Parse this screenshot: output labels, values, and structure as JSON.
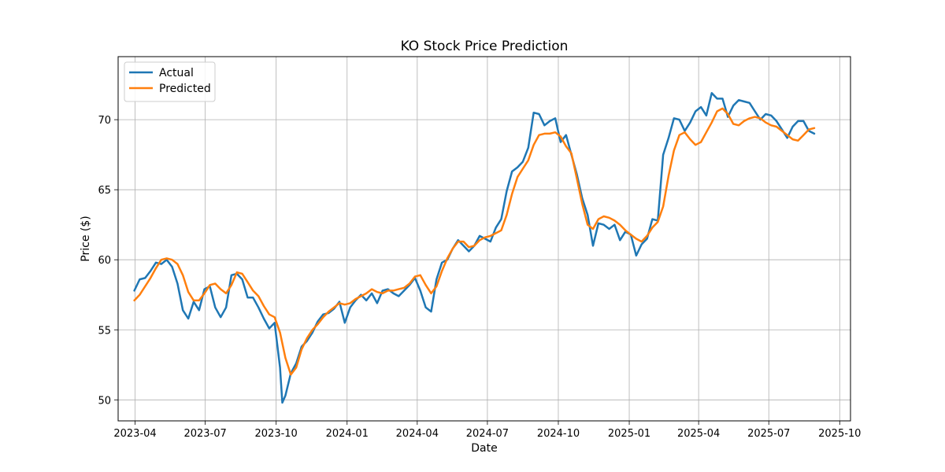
{
  "chart_data": {
    "type": "line",
    "title": "KO Stock Price Prediction",
    "xlabel": "Date",
    "ylabel": "Price ($)",
    "grid": true,
    "legend_position": "top-left",
    "xlim": [
      "2023-03-10",
      "2025-10-15"
    ],
    "ylim": [
      48.5,
      74.5
    ],
    "x_ticks": [
      "2023-04-01",
      "2023-07-01",
      "2023-10-01",
      "2024-01-01",
      "2024-04-01",
      "2024-07-01",
      "2024-10-01",
      "2025-01-01",
      "2025-04-01",
      "2025-07-01",
      "2025-10-01"
    ],
    "x_tick_labels": [
      "2023-04",
      "2023-07",
      "2023-10",
      "2024-01",
      "2024-04",
      "2024-07",
      "2024-10",
      "2025-01",
      "2025-04",
      "2025-07",
      "2025-10"
    ],
    "y_ticks": [
      50,
      55,
      60,
      65,
      70
    ],
    "series": [
      {
        "name": "Actual",
        "color": "#1f77b4",
        "points": [
          [
            "2023-03-31",
            57.8
          ],
          [
            "2023-04-07",
            58.6
          ],
          [
            "2023-04-14",
            58.7
          ],
          [
            "2023-04-21",
            59.2
          ],
          [
            "2023-04-28",
            59.8
          ],
          [
            "2023-05-05",
            59.7
          ],
          [
            "2023-05-12",
            60.0
          ],
          [
            "2023-05-19",
            59.5
          ],
          [
            "2023-05-26",
            58.3
          ],
          [
            "2023-06-02",
            56.4
          ],
          [
            "2023-06-09",
            55.8
          ],
          [
            "2023-06-16",
            57.0
          ],
          [
            "2023-06-23",
            56.4
          ],
          [
            "2023-06-30",
            57.9
          ],
          [
            "2023-07-07",
            58.1
          ],
          [
            "2023-07-14",
            56.6
          ],
          [
            "2023-07-21",
            55.9
          ],
          [
            "2023-07-28",
            56.6
          ],
          [
            "2023-08-04",
            58.9
          ],
          [
            "2023-08-11",
            59.0
          ],
          [
            "2023-08-18",
            58.6
          ],
          [
            "2023-08-25",
            57.3
          ],
          [
            "2023-09-01",
            57.3
          ],
          [
            "2023-09-08",
            56.6
          ],
          [
            "2023-09-15",
            55.8
          ],
          [
            "2023-09-22",
            55.1
          ],
          [
            "2023-09-29",
            55.5
          ],
          [
            "2023-10-06",
            52.3
          ],
          [
            "2023-10-09",
            49.8
          ],
          [
            "2023-10-13",
            50.3
          ],
          [
            "2023-10-20",
            51.9
          ],
          [
            "2023-10-27",
            52.6
          ],
          [
            "2023-11-03",
            53.8
          ],
          [
            "2023-11-10",
            54.2
          ],
          [
            "2023-11-17",
            54.8
          ],
          [
            "2023-11-24",
            55.6
          ],
          [
            "2023-12-01",
            56.1
          ],
          [
            "2023-12-08",
            56.2
          ],
          [
            "2023-12-15",
            56.5
          ],
          [
            "2023-12-22",
            57.0
          ],
          [
            "2023-12-29",
            55.5
          ],
          [
            "2024-01-05",
            56.6
          ],
          [
            "2024-01-12",
            57.1
          ],
          [
            "2024-01-19",
            57.5
          ],
          [
            "2024-01-26",
            57.1
          ],
          [
            "2024-02-02",
            57.6
          ],
          [
            "2024-02-09",
            56.9
          ],
          [
            "2024-02-16",
            57.8
          ],
          [
            "2024-02-23",
            57.9
          ],
          [
            "2024-03-01",
            57.6
          ],
          [
            "2024-03-08",
            57.4
          ],
          [
            "2024-03-15",
            57.8
          ],
          [
            "2024-03-22",
            58.2
          ],
          [
            "2024-03-29",
            58.7
          ],
          [
            "2024-04-05",
            57.8
          ],
          [
            "2024-04-12",
            56.6
          ],
          [
            "2024-04-19",
            56.3
          ],
          [
            "2024-04-26",
            58.6
          ],
          [
            "2024-05-03",
            59.8
          ],
          [
            "2024-05-10",
            60.0
          ],
          [
            "2024-05-17",
            60.8
          ],
          [
            "2024-05-24",
            61.4
          ],
          [
            "2024-05-31",
            61.0
          ],
          [
            "2024-06-07",
            60.6
          ],
          [
            "2024-06-14",
            61.0
          ],
          [
            "2024-06-21",
            61.7
          ],
          [
            "2024-06-28",
            61.5
          ],
          [
            "2024-07-05",
            61.3
          ],
          [
            "2024-07-12",
            62.3
          ],
          [
            "2024-07-19",
            62.9
          ],
          [
            "2024-07-26",
            64.9
          ],
          [
            "2024-08-02",
            66.3
          ],
          [
            "2024-08-09",
            66.6
          ],
          [
            "2024-08-16",
            67.0
          ],
          [
            "2024-08-23",
            68.0
          ],
          [
            "2024-08-30",
            70.5
          ],
          [
            "2024-09-06",
            70.4
          ],
          [
            "2024-09-13",
            69.6
          ],
          [
            "2024-09-20",
            69.9
          ],
          [
            "2024-09-27",
            70.1
          ],
          [
            "2024-10-04",
            68.4
          ],
          [
            "2024-10-11",
            68.9
          ],
          [
            "2024-10-18",
            67.5
          ],
          [
            "2024-10-25",
            66.1
          ],
          [
            "2024-11-01",
            64.4
          ],
          [
            "2024-11-08",
            63.2
          ],
          [
            "2024-11-15",
            61.0
          ],
          [
            "2024-11-22",
            62.6
          ],
          [
            "2024-11-29",
            62.5
          ],
          [
            "2024-12-06",
            62.2
          ],
          [
            "2024-12-13",
            62.5
          ],
          [
            "2024-12-20",
            61.4
          ],
          [
            "2024-12-27",
            62.0
          ],
          [
            "2025-01-03",
            61.8
          ],
          [
            "2025-01-10",
            60.3
          ],
          [
            "2025-01-17",
            61.1
          ],
          [
            "2025-01-24",
            61.5
          ],
          [
            "2025-01-31",
            62.9
          ],
          [
            "2025-02-07",
            62.8
          ],
          [
            "2025-02-14",
            67.5
          ],
          [
            "2025-02-21",
            68.7
          ],
          [
            "2025-02-28",
            70.1
          ],
          [
            "2025-03-07",
            70.0
          ],
          [
            "2025-03-14",
            69.2
          ],
          [
            "2025-03-21",
            69.8
          ],
          [
            "2025-03-28",
            70.6
          ],
          [
            "2025-04-04",
            70.9
          ],
          [
            "2025-04-11",
            70.3
          ],
          [
            "2025-04-18",
            71.9
          ],
          [
            "2025-04-25",
            71.5
          ],
          [
            "2025-05-02",
            71.5
          ],
          [
            "2025-05-09",
            70.2
          ],
          [
            "2025-05-16",
            71.0
          ],
          [
            "2025-05-23",
            71.4
          ],
          [
            "2025-05-30",
            71.3
          ],
          [
            "2025-06-06",
            71.2
          ],
          [
            "2025-06-13",
            70.6
          ],
          [
            "2025-06-20",
            70.0
          ],
          [
            "2025-06-27",
            70.4
          ],
          [
            "2025-07-04",
            70.3
          ],
          [
            "2025-07-11",
            69.9
          ],
          [
            "2025-07-18",
            69.3
          ],
          [
            "2025-07-25",
            68.7
          ],
          [
            "2025-08-01",
            69.5
          ],
          [
            "2025-08-08",
            69.9
          ],
          [
            "2025-08-15",
            69.9
          ],
          [
            "2025-08-22",
            69.2
          ],
          [
            "2025-08-29",
            69.0
          ]
        ]
      },
      {
        "name": "Predicted",
        "color": "#ff7f0e",
        "points": [
          [
            "2023-03-31",
            57.1
          ],
          [
            "2023-04-07",
            57.5
          ],
          [
            "2023-04-14",
            58.1
          ],
          [
            "2023-04-21",
            58.7
          ],
          [
            "2023-04-28",
            59.4
          ],
          [
            "2023-05-05",
            60.0
          ],
          [
            "2023-05-12",
            60.1
          ],
          [
            "2023-05-19",
            60.0
          ],
          [
            "2023-05-26",
            59.7
          ],
          [
            "2023-06-02",
            58.9
          ],
          [
            "2023-06-09",
            57.7
          ],
          [
            "2023-06-16",
            57.1
          ],
          [
            "2023-06-23",
            57.1
          ],
          [
            "2023-06-30",
            57.6
          ],
          [
            "2023-07-07",
            58.2
          ],
          [
            "2023-07-14",
            58.3
          ],
          [
            "2023-07-21",
            57.9
          ],
          [
            "2023-07-28",
            57.6
          ],
          [
            "2023-08-04",
            58.2
          ],
          [
            "2023-08-11",
            59.1
          ],
          [
            "2023-08-18",
            59.0
          ],
          [
            "2023-08-25",
            58.4
          ],
          [
            "2023-09-01",
            57.8
          ],
          [
            "2023-09-08",
            57.4
          ],
          [
            "2023-09-15",
            56.7
          ],
          [
            "2023-09-22",
            56.1
          ],
          [
            "2023-09-29",
            55.9
          ],
          [
            "2023-10-06",
            54.8
          ],
          [
            "2023-10-13",
            53.0
          ],
          [
            "2023-10-20",
            51.8
          ],
          [
            "2023-10-27",
            52.3
          ],
          [
            "2023-11-03",
            53.6
          ],
          [
            "2023-11-10",
            54.4
          ],
          [
            "2023-11-17",
            55.0
          ],
          [
            "2023-11-24",
            55.4
          ],
          [
            "2023-12-01",
            55.9
          ],
          [
            "2023-12-08",
            56.3
          ],
          [
            "2023-12-15",
            56.6
          ],
          [
            "2023-12-22",
            56.9
          ],
          [
            "2023-12-29",
            56.8
          ],
          [
            "2024-01-05",
            56.9
          ],
          [
            "2024-01-12",
            57.2
          ],
          [
            "2024-01-19",
            57.4
          ],
          [
            "2024-01-26",
            57.6
          ],
          [
            "2024-02-02",
            57.9
          ],
          [
            "2024-02-09",
            57.7
          ],
          [
            "2024-02-16",
            57.6
          ],
          [
            "2024-02-23",
            57.8
          ],
          [
            "2024-03-01",
            57.8
          ],
          [
            "2024-03-08",
            57.9
          ],
          [
            "2024-03-15",
            58.0
          ],
          [
            "2024-03-22",
            58.3
          ],
          [
            "2024-03-29",
            58.8
          ],
          [
            "2024-04-05",
            58.9
          ],
          [
            "2024-04-12",
            58.2
          ],
          [
            "2024-04-19",
            57.6
          ],
          [
            "2024-04-26",
            58.1
          ],
          [
            "2024-05-03",
            59.2
          ],
          [
            "2024-05-10",
            60.1
          ],
          [
            "2024-05-17",
            60.8
          ],
          [
            "2024-05-24",
            61.3
          ],
          [
            "2024-05-31",
            61.3
          ],
          [
            "2024-06-07",
            60.9
          ],
          [
            "2024-06-14",
            61.0
          ],
          [
            "2024-06-21",
            61.4
          ],
          [
            "2024-06-28",
            61.6
          ],
          [
            "2024-07-05",
            61.7
          ],
          [
            "2024-07-12",
            61.9
          ],
          [
            "2024-07-19",
            62.1
          ],
          [
            "2024-07-26",
            63.2
          ],
          [
            "2024-08-02",
            64.7
          ],
          [
            "2024-08-09",
            65.9
          ],
          [
            "2024-08-16",
            66.5
          ],
          [
            "2024-08-23",
            67.1
          ],
          [
            "2024-08-30",
            68.2
          ],
          [
            "2024-09-06",
            68.9
          ],
          [
            "2024-09-13",
            69.0
          ],
          [
            "2024-09-20",
            69.0
          ],
          [
            "2024-09-27",
            69.1
          ],
          [
            "2024-10-04",
            68.8
          ],
          [
            "2024-10-11",
            68.1
          ],
          [
            "2024-10-18",
            67.6
          ],
          [
            "2024-10-25",
            65.8
          ],
          [
            "2024-11-01",
            64.0
          ],
          [
            "2024-11-08",
            62.5
          ],
          [
            "2024-11-15",
            62.2
          ],
          [
            "2024-11-22",
            62.9
          ],
          [
            "2024-11-29",
            63.1
          ],
          [
            "2024-12-06",
            63.0
          ],
          [
            "2024-12-13",
            62.8
          ],
          [
            "2024-12-20",
            62.5
          ],
          [
            "2024-12-27",
            62.1
          ],
          [
            "2025-01-03",
            61.8
          ],
          [
            "2025-01-10",
            61.5
          ],
          [
            "2025-01-17",
            61.3
          ],
          [
            "2025-01-24",
            61.7
          ],
          [
            "2025-01-31",
            62.3
          ],
          [
            "2025-02-07",
            62.7
          ],
          [
            "2025-02-14",
            63.8
          ],
          [
            "2025-02-21",
            66.0
          ],
          [
            "2025-02-28",
            67.8
          ],
          [
            "2025-03-07",
            68.9
          ],
          [
            "2025-03-14",
            69.1
          ],
          [
            "2025-03-21",
            68.6
          ],
          [
            "2025-03-28",
            68.2
          ],
          [
            "2025-04-04",
            68.4
          ],
          [
            "2025-04-11",
            69.1
          ],
          [
            "2025-04-18",
            69.8
          ],
          [
            "2025-04-25",
            70.6
          ],
          [
            "2025-05-02",
            70.8
          ],
          [
            "2025-05-09",
            70.4
          ],
          [
            "2025-05-16",
            69.7
          ],
          [
            "2025-05-23",
            69.6
          ],
          [
            "2025-05-30",
            69.9
          ],
          [
            "2025-06-06",
            70.1
          ],
          [
            "2025-06-13",
            70.2
          ],
          [
            "2025-06-20",
            70.1
          ],
          [
            "2025-06-27",
            69.8
          ],
          [
            "2025-07-04",
            69.6
          ],
          [
            "2025-07-11",
            69.5
          ],
          [
            "2025-07-18",
            69.2
          ],
          [
            "2025-07-25",
            68.9
          ],
          [
            "2025-08-01",
            68.6
          ],
          [
            "2025-08-08",
            68.5
          ],
          [
            "2025-08-15",
            68.9
          ],
          [
            "2025-08-22",
            69.3
          ],
          [
            "2025-08-29",
            69.4
          ]
        ]
      }
    ]
  }
}
